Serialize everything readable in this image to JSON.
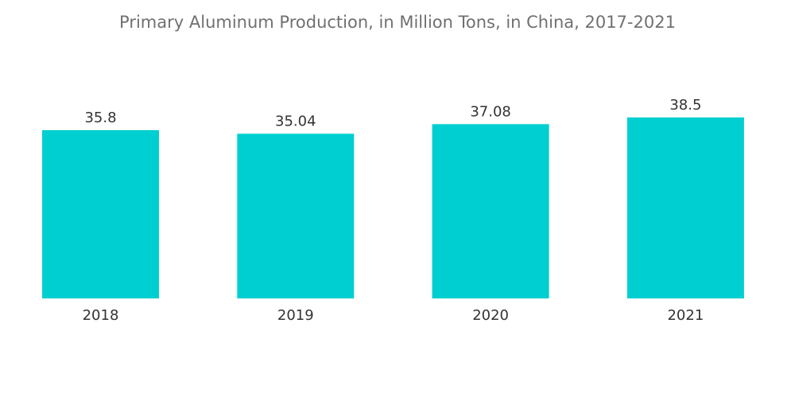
{
  "chart_data": {
    "type": "bar",
    "title": "Primary Aluminum Production, in Million Tons, in China, 2017-2021",
    "categories": [
      "2018",
      "2019",
      "2020",
      "2021"
    ],
    "values": [
      35.8,
      35.04,
      37.08,
      38.5
    ],
    "xlabel": "",
    "ylabel": "",
    "ylim": [
      0,
      38.5
    ],
    "grid": false,
    "legend": "none",
    "bar_color": "#00cfd1"
  }
}
